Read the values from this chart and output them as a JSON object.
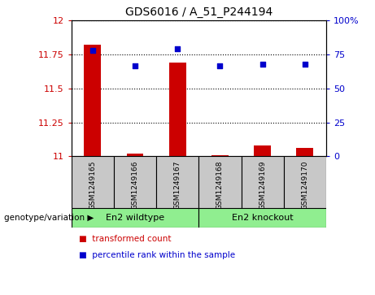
{
  "title": "GDS6016 / A_51_P244194",
  "samples": [
    "GSM1249165",
    "GSM1249166",
    "GSM1249167",
    "GSM1249168",
    "GSM1249169",
    "GSM1249170"
  ],
  "red_bars": [
    11.82,
    11.02,
    11.69,
    11.01,
    11.08,
    11.06
  ],
  "blue_dots": [
    11.78,
    11.67,
    11.79,
    11.67,
    11.68,
    11.68
  ],
  "ylim_left": [
    11.0,
    12.0
  ],
  "ylim_right": [
    0,
    100
  ],
  "yticks_left": [
    11.0,
    11.25,
    11.5,
    11.75,
    12.0
  ],
  "ytick_labels_left": [
    "11",
    "11.25",
    "11.5",
    "11.75",
    "12"
  ],
  "yticks_right": [
    0,
    25,
    50,
    75,
    100
  ],
  "ytick_labels_right": [
    "0",
    "25",
    "50",
    "75",
    "100%"
  ],
  "groups": [
    {
      "label": "En2 wildtype",
      "indices": [
        0,
        1,
        2
      ],
      "color": "#90EE90"
    },
    {
      "label": "En2 knockout",
      "indices": [
        3,
        4,
        5
      ],
      "color": "#90EE90"
    }
  ],
  "group_row_label": "genotype/variation",
  "legend_items": [
    {
      "color": "#CC0000",
      "label": "transformed count"
    },
    {
      "color": "#0000CC",
      "label": "percentile rank within the sample"
    }
  ],
  "bar_color": "#CC0000",
  "dot_color": "#0000CC",
  "sample_box_color": "#C8C8C8",
  "bar_width": 0.4
}
